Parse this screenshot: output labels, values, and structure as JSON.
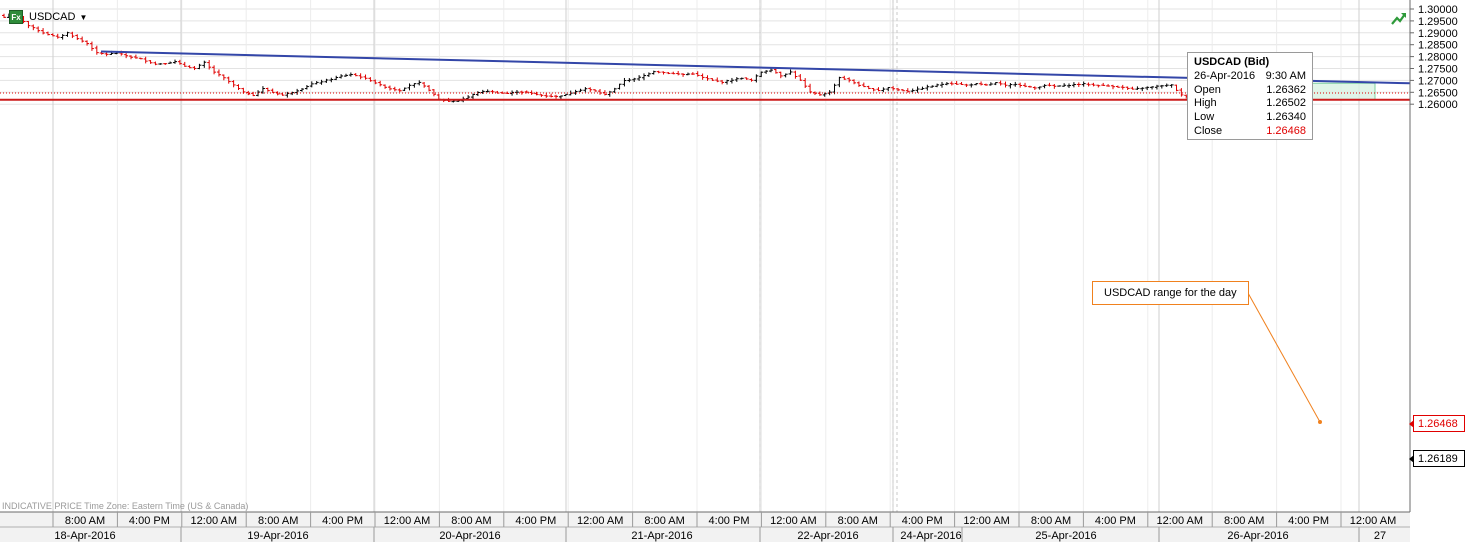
{
  "header": {
    "symbol": "USDCAD",
    "fx_badge": "Fx",
    "dropdown_icon": "caret-down-icon",
    "trend_icon": "trend-up-arrow-icon"
  },
  "tooltip": {
    "title": "USDCAD (Bid)",
    "date": "26-Apr-2016",
    "time": "9:30 AM",
    "rows": [
      {
        "label": "Open",
        "value": "1.26362"
      },
      {
        "label": "High",
        "value": "1.26502"
      },
      {
        "label": "Low",
        "value": "1.26340"
      },
      {
        "label": "Close",
        "value": "1.26468"
      }
    ]
  },
  "annotation": "USDCAD range for the day",
  "watermark": "INDICATIVE PRICE   Time Zone: Eastern Time (US & Canada)",
  "price_badges": {
    "last": "1.26468",
    "support": "1.26189"
  },
  "colors": {
    "up": "#000000",
    "down": "#e00000",
    "trendline": "#3346a8",
    "support": "#cc1a1a",
    "callout": "#f0811e",
    "range_box": "#d8f3e2",
    "range_border": "#7fd0a1",
    "last_price": "#e00000"
  },
  "chart_data": {
    "type": "ohlc",
    "title": "USDCAD",
    "ylim": [
      1.2585,
      1.3005
    ],
    "y_ticks": [
      "1.30000",
      "1.29500",
      "1.29000",
      "1.28500",
      "1.28000",
      "1.27500",
      "1.27000",
      "1.26500",
      "1.26000"
    ],
    "x_time_labels": [
      "8:00 AM",
      "4:00 PM",
      "12:00 AM",
      "8:00 AM",
      "4:00 PM",
      "12:00 AM",
      "8:00 AM",
      "4:00 PM",
      "12:00 AM",
      "8:00 AM",
      "4:00 PM",
      "12:00 AM",
      "8:00 AM",
      "4:00 PM",
      "12:00 AM",
      "8:00 AM",
      "4:00 PM",
      "12:00 AM",
      "8:00 AM",
      "4:00 PM",
      "12:00 AM"
    ],
    "x_date_labels": [
      "18-Apr-2016",
      "19-Apr-2016",
      "20-Apr-2016",
      "21-Apr-2016",
      "22-Apr-2016",
      "24-Apr-2016",
      "25-Apr-2016",
      "26-Apr-2016",
      "27"
    ],
    "price_path": [
      [
        0,
        1.2965
      ],
      [
        2,
        1.2985
      ],
      [
        5,
        1.293
      ],
      [
        8,
        1.29
      ],
      [
        11,
        1.288
      ],
      [
        13,
        1.29
      ],
      [
        15,
        1.2875
      ],
      [
        17,
        1.2855
      ],
      [
        19,
        1.2815
      ],
      [
        21,
        1.281
      ],
      [
        23,
        1.2815
      ],
      [
        26,
        1.2798
      ],
      [
        28,
        1.279
      ],
      [
        31,
        1.2768
      ],
      [
        33,
        1.2772
      ],
      [
        35,
        1.2778
      ],
      [
        37,
        1.276
      ],
      [
        39,
        1.275
      ],
      [
        41,
        1.2775
      ],
      [
        43,
        1.2735
      ],
      [
        45,
        1.271
      ],
      [
        47,
        1.268
      ],
      [
        49,
        1.265
      ],
      [
        51,
        1.2638
      ],
      [
        53,
        1.2665
      ],
      [
        55,
        1.265
      ],
      [
        57,
        1.2638
      ],
      [
        59,
        1.265
      ],
      [
        61,
        1.2665
      ],
      [
        63,
        1.2685
      ],
      [
        65,
        1.2695
      ],
      [
        67,
        1.2705
      ],
      [
        69,
        1.2718
      ],
      [
        71,
        1.2725
      ],
      [
        73,
        1.2715
      ],
      [
        75,
        1.27
      ],
      [
        77,
        1.268
      ],
      [
        79,
        1.2665
      ],
      [
        81,
        1.2658
      ],
      [
        83,
        1.268
      ],
      [
        85,
        1.269
      ],
      [
        87,
        1.266
      ],
      [
        89,
        1.262
      ],
      [
        91,
        1.2612
      ],
      [
        93,
        1.2615
      ],
      [
        95,
        1.263
      ],
      [
        97,
        1.265
      ],
      [
        99,
        1.2655
      ],
      [
        101,
        1.2648
      ],
      [
        103,
        1.2645
      ],
      [
        105,
        1.2652
      ],
      [
        107,
        1.265
      ],
      [
        109,
        1.264
      ],
      [
        111,
        1.2635
      ],
      [
        113,
        1.2632
      ],
      [
        115,
        1.264
      ],
      [
        117,
        1.2655
      ],
      [
        119,
        1.2665
      ],
      [
        121,
        1.2655
      ],
      [
        123,
        1.264
      ],
      [
        125,
        1.2665
      ],
      [
        127,
        1.27
      ],
      [
        129,
        1.2705
      ],
      [
        131,
        1.272
      ],
      [
        133,
        1.2738
      ],
      [
        135,
        1.2733
      ],
      [
        137,
        1.2728
      ],
      [
        139,
        1.2725
      ],
      [
        141,
        1.2728
      ],
      [
        143,
        1.2712
      ],
      [
        145,
        1.27
      ],
      [
        147,
        1.2693
      ],
      [
        149,
        1.2702
      ],
      [
        151,
        1.271
      ],
      [
        153,
        1.27
      ],
      [
        155,
        1.2735
      ],
      [
        157,
        1.2745
      ],
      [
        159,
        1.272
      ],
      [
        161,
        1.2735
      ],
      [
        163,
        1.27
      ],
      [
        165,
        1.265
      ],
      [
        167,
        1.264
      ],
      [
        169,
        1.265
      ],
      [
        171,
        1.2712
      ],
      [
        173,
        1.27
      ],
      [
        175,
        1.268
      ],
      [
        177,
        1.2665
      ],
      [
        179,
        1.2658
      ],
      [
        181,
        1.267
      ],
      [
        183,
        1.266
      ],
      [
        185,
        1.2655
      ],
      [
        187,
        1.2662
      ],
      [
        189,
        1.2672
      ],
      [
        191,
        1.268
      ],
      [
        193,
        1.2688
      ],
      [
        195,
        1.2685
      ],
      [
        197,
        1.268
      ],
      [
        199,
        1.2685
      ],
      [
        201,
        1.268
      ],
      [
        203,
        1.269
      ],
      [
        205,
        1.2678
      ],
      [
        207,
        1.2685
      ],
      [
        209,
        1.2675
      ],
      [
        211,
        1.2668
      ],
      [
        213,
        1.268
      ],
      [
        215,
        1.2675
      ],
      [
        217,
        1.2678
      ],
      [
        219,
        1.2682
      ],
      [
        221,
        1.2685
      ],
      [
        223,
        1.268
      ],
      [
        225,
        1.2678
      ],
      [
        227,
        1.2675
      ],
      [
        229,
        1.267
      ],
      [
        231,
        1.2662
      ],
      [
        233,
        1.2668
      ],
      [
        235,
        1.2672
      ],
      [
        237,
        1.2678
      ],
      [
        239,
        1.268
      ],
      [
        241,
        1.2638
      ],
      [
        243,
        1.2632
      ],
      [
        245,
        1.2645
      ],
      [
        247,
        1.2655
      ],
      [
        249,
        1.2648
      ],
      [
        251,
        1.2636
      ],
      [
        253,
        1.2647
      ]
    ],
    "trendline": {
      "from": [
        "18-Apr-2016 10:00",
        "1.28213"
      ],
      "to": [
        "26-Apr-2016 22:00",
        "1.26900"
      ]
    },
    "support_level": "1.26189",
    "last_price": "1.26468",
    "range_box": {
      "high": "1.26880",
      "low": "1.26200",
      "start": "26-Apr-2016 09:00",
      "end": "26-Apr-2016 24:00"
    }
  }
}
